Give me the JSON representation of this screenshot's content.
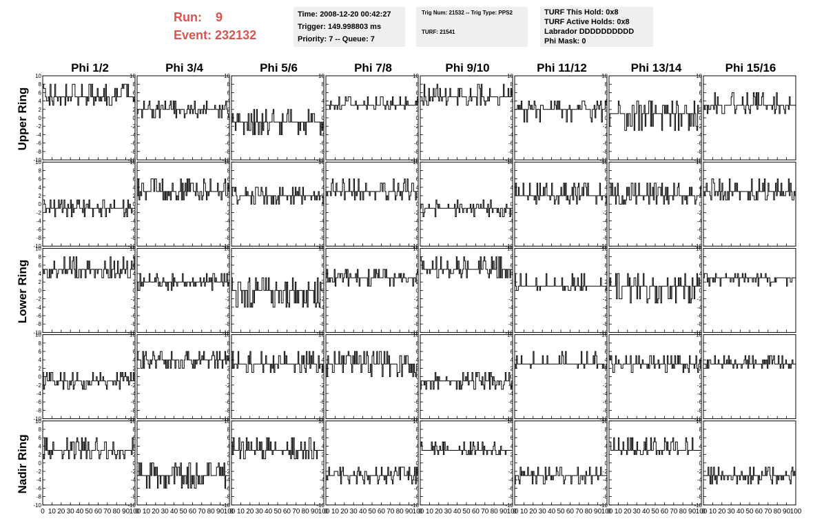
{
  "header": {
    "run_label": "Run:",
    "run_value": "9",
    "event_label": "Event:",
    "event_value": "232132"
  },
  "info_boxes": {
    "time": "Time: 2008-12-20 00:42:27",
    "trigger": "Trigger: 149.998803 ms",
    "priority": "Priority: 7 -- Queue: 7",
    "trig_num": "Trig Num: 21532 -- Trig Type: PPS2",
    "turf": "TURF: 21541",
    "turf_this_hold": "TURF This Hold: 0x8",
    "turf_active_holds": "TURF Active Holds: 0x8",
    "labrador": "Labrador DDDDDDDDDD",
    "phi_mask": "Phi Mask: 0"
  },
  "chart_data": {
    "type": "line",
    "layout": "grid of 40 strip charts, 5 rows x 8 columns",
    "column_titles": [
      "Phi 1/2",
      "Phi 3/4",
      "Phi 5/6",
      "Phi 7/8",
      "Phi 9/10",
      "Phi 11/12",
      "Phi 13/14",
      "Phi 15/16"
    ],
    "row_titles": [
      "Upper Ring",
      "",
      "Lower Ring",
      "",
      "Nadir Ring"
    ],
    "xlim": [
      0,
      100
    ],
    "ylim": [
      -10,
      10
    ],
    "x_ticks": [
      "0",
      "10",
      "20",
      "30",
      "40",
      "50",
      "60",
      "70",
      "80",
      "90",
      "100"
    ],
    "y_ticks": [
      "10",
      "8",
      "6",
      "4",
      "2",
      "0",
      "-2",
      "-4",
      "-6",
      "-8",
      "-10"
    ],
    "points_per_trace": 100,
    "traces": [
      [
        {
          "level": 5,
          "low": 3,
          "high": 8
        },
        {
          "level": 2,
          "low": 0,
          "high": 4
        },
        {
          "level": -1,
          "low": -4,
          "high": 2
        },
        {
          "level": 3,
          "low": 2,
          "high": 5
        },
        {
          "level": 5,
          "low": 3,
          "high": 8
        },
        {
          "level": 2,
          "low": -1,
          "high": 4
        },
        {
          "level": 1,
          "low": -3,
          "high": 4
        },
        {
          "level": 3,
          "low": 1,
          "high": 6
        }
      ],
      [
        {
          "level": -1,
          "low": -3,
          "high": 1
        },
        {
          "level": 3,
          "low": 1,
          "high": 6
        },
        {
          "level": 2,
          "low": 0,
          "high": 4
        },
        {
          "level": 3,
          "low": 1,
          "high": 6
        },
        {
          "level": -1,
          "low": -3,
          "high": 1
        },
        {
          "level": 2,
          "low": 0,
          "high": 5
        },
        {
          "level": 2,
          "low": 0,
          "high": 5
        },
        {
          "level": 3,
          "low": 1,
          "high": 6
        }
      ],
      [
        {
          "level": 5,
          "low": 3,
          "high": 8
        },
        {
          "level": 2,
          "low": 0,
          "high": 4
        },
        {
          "level": 0,
          "low": -4,
          "high": 3
        },
        {
          "level": 3,
          "low": 1,
          "high": 5
        },
        {
          "level": 5,
          "low": 3,
          "high": 8
        },
        {
          "level": 1,
          "low": 0,
          "high": 4
        },
        {
          "level": 1,
          "low": -3,
          "high": 4
        },
        {
          "level": 3,
          "low": 1,
          "high": 4
        }
      ],
      [
        {
          "level": -1,
          "low": -3,
          "high": 1
        },
        {
          "level": 4,
          "low": 2,
          "high": 6
        },
        {
          "level": 3,
          "low": 1,
          "high": 6
        },
        {
          "level": 3,
          "low": 0,
          "high": 6
        },
        {
          "level": -1,
          "low": -3,
          "high": 1
        },
        {
          "level": 3,
          "low": 2,
          "high": 6
        },
        {
          "level": 3,
          "low": 1,
          "high": 5
        },
        {
          "level": 3,
          "low": 2,
          "high": 5
        }
      ],
      [
        {
          "level": 3,
          "low": 1,
          "high": 6
        },
        {
          "level": -3,
          "low": -6,
          "high": 0
        },
        {
          "level": 3,
          "low": 1,
          "high": 6
        },
        {
          "level": -3,
          "low": -5,
          "high": -1
        },
        {
          "level": 3,
          "low": 2,
          "high": 5
        },
        {
          "level": -3,
          "low": -5,
          "high": -1
        },
        {
          "level": 3,
          "low": 2,
          "high": 6
        },
        {
          "level": -3,
          "low": -5,
          "high": -1
        }
      ]
    ]
  }
}
